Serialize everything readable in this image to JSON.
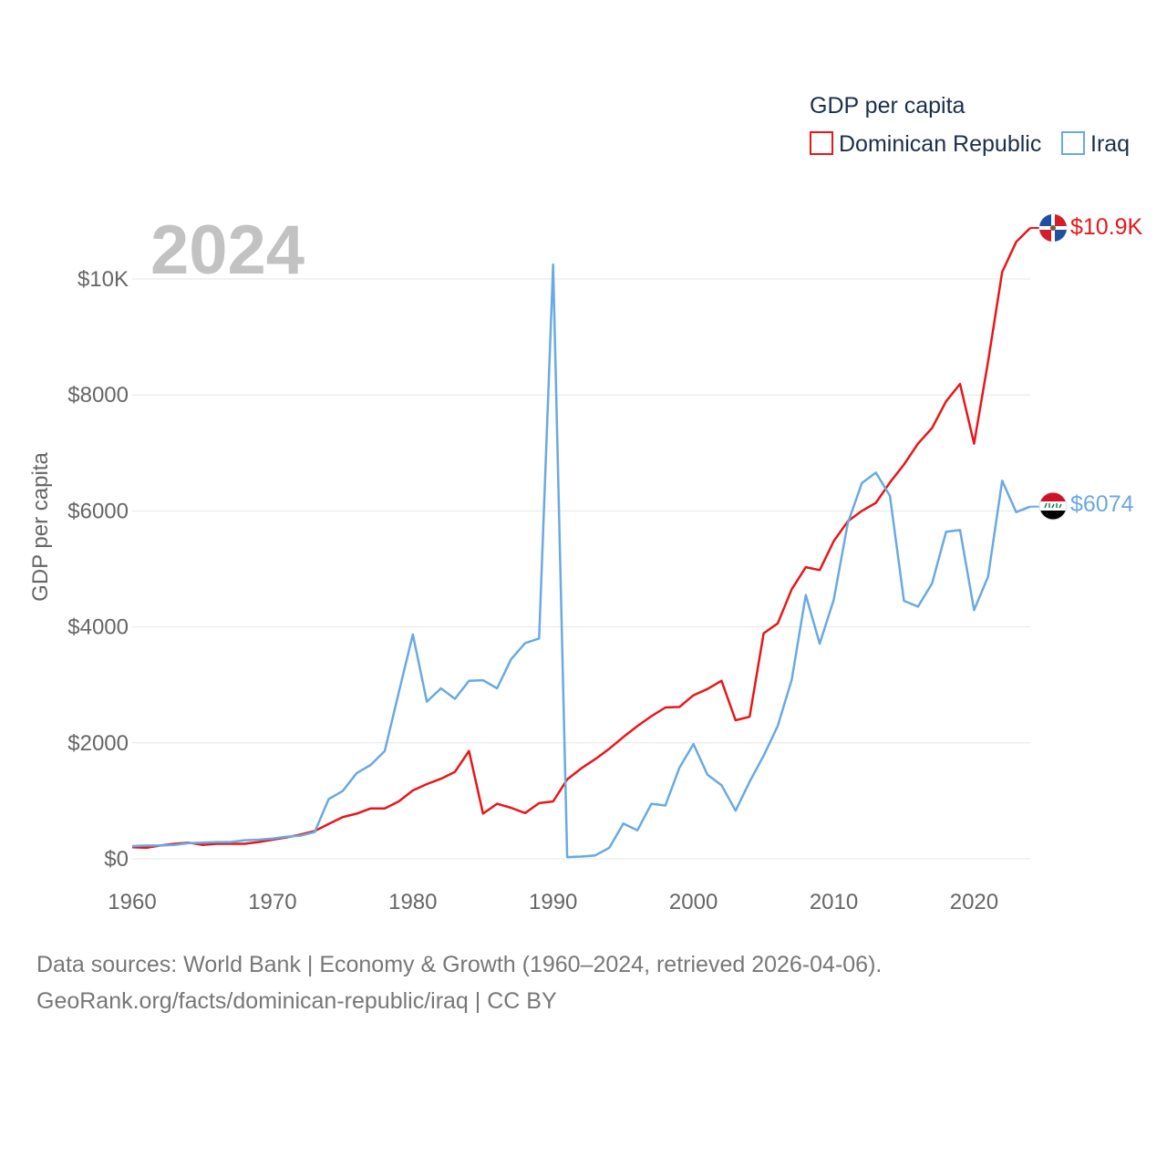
{
  "chart_data": {
    "type": "line",
    "year_label": "2024",
    "ylabel": "GDP per capita",
    "legend_title": "GDP per capita",
    "ylim": [
      0,
      10000
    ],
    "xlim": [
      1960,
      2024
    ],
    "y_ticks": [
      0,
      2000,
      4000,
      6000,
      8000,
      10000
    ],
    "y_tick_labels": [
      "$0",
      "$2000",
      "$4000",
      "$6000",
      "$8000",
      "$10K"
    ],
    "x_ticks": [
      1960,
      1970,
      1980,
      1990,
      2000,
      2010,
      2020
    ],
    "x_tick_labels": [
      "1960",
      "1970",
      "1980",
      "1990",
      "2000",
      "2010",
      "2020"
    ],
    "x": [
      1960,
      1961,
      1962,
      1963,
      1964,
      1965,
      1966,
      1967,
      1968,
      1969,
      1970,
      1971,
      1972,
      1973,
      1974,
      1975,
      1976,
      1977,
      1978,
      1979,
      1980,
      1981,
      1982,
      1983,
      1984,
      1985,
      1986,
      1987,
      1988,
      1989,
      1990,
      1991,
      1992,
      1993,
      1994,
      1995,
      1996,
      1997,
      1998,
      1999,
      2000,
      2001,
      2002,
      2003,
      2004,
      2005,
      2006,
      2007,
      2008,
      2009,
      2010,
      2011,
      2012,
      2013,
      2014,
      2015,
      2016,
      2017,
      2018,
      2019,
      2020,
      2021,
      2022,
      2023,
      2024
    ],
    "series": [
      {
        "name": "Dominican Republic",
        "color": "#e8161a",
        "end_label": "$10.9K",
        "flag_icon": "dominican-republic-flag-icon",
        "values": [
          200,
          190,
          230,
          260,
          280,
          240,
          260,
          260,
          260,
          290,
          330,
          370,
          420,
          480,
          600,
          720,
          780,
          870,
          870,
          990,
          1180,
          1290,
          1380,
          1500,
          1860,
          780,
          950,
          880,
          790,
          960,
          990,
          1370,
          1560,
          1720,
          1900,
          2100,
          2290,
          2460,
          2610,
          2620,
          2820,
          2930,
          3070,
          2390,
          2450,
          3890,
          4060,
          4650,
          5030,
          4980,
          5480,
          5820,
          6000,
          6140,
          6490,
          6800,
          7160,
          7430,
          7890,
          8190,
          7160,
          8580,
          10120,
          10640,
          10880
        ]
      },
      {
        "name": "Iraq",
        "color": "#6aa9e2",
        "end_label": "$6074",
        "flag_icon": "iraq-flag-icon",
        "values": [
          220,
          230,
          230,
          240,
          270,
          280,
          290,
          290,
          320,
          330,
          350,
          380,
          400,
          460,
          1030,
          1170,
          1480,
          1620,
          1860,
          2870,
          3870,
          2710,
          2940,
          2760,
          3070,
          3080,
          2940,
          3440,
          3720,
          3800,
          10250,
          30,
          40,
          60,
          190,
          610,
          490,
          950,
          920,
          1570,
          1980,
          1450,
          1270,
          830,
          1330,
          1780,
          2290,
          3090,
          4550,
          3710,
          4470,
          5790,
          6480,
          6660,
          6260,
          4450,
          4350,
          4750,
          5640,
          5670,
          4290,
          4870,
          6520,
          5980,
          6074
        ]
      }
    ]
  },
  "footer": {
    "line1": "Data sources: World Bank | Economy & Growth (1960–2024, retrieved 2026-04-06).",
    "line2": "GeoRank.org/facts/dominican-republic/iraq | CC BY"
  }
}
